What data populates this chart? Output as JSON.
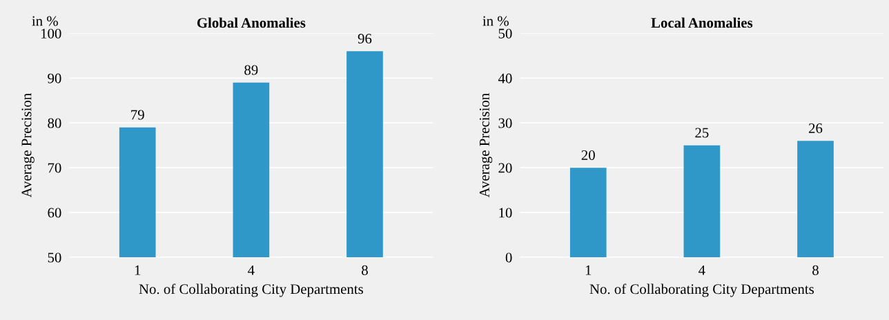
{
  "chart_data": [
    {
      "type": "bar",
      "title": "Global Anomalies",
      "xlabel": "No. of Collaborating City Departments",
      "ylabel": "Average Precision",
      "annotations": [
        "in %"
      ],
      "categories": [
        "1",
        "4",
        "8"
      ],
      "values": [
        79,
        89,
        96
      ],
      "color": "#3098c9",
      "ylim": [
        50,
        100
      ],
      "yticks": [
        50,
        60,
        70,
        80,
        90,
        100
      ],
      "grid": "y",
      "data_labels": true
    },
    {
      "type": "bar",
      "title": "Local Anomalies",
      "xlabel": "No. of Collaborating City Departments",
      "ylabel": "Average Precision",
      "annotations": [
        "in %"
      ],
      "categories": [
        "1",
        "4",
        "8"
      ],
      "values": [
        20,
        25,
        26
      ],
      "color": "#3098c9",
      "ylim": [
        0,
        50
      ],
      "yticks": [
        0,
        10,
        20,
        30,
        40,
        50
      ],
      "grid": "y",
      "data_labels": true
    }
  ]
}
